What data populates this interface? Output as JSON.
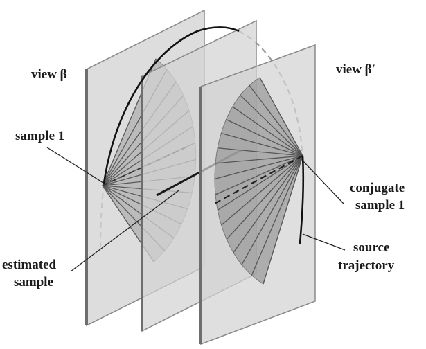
{
  "labels": {
    "view_beta": "view β",
    "view_beta_prime": "view β′",
    "sample_1": "sample 1",
    "estimated_line1": "estimated",
    "estimated_line2": "sample",
    "conjugate_line1": "conjugate",
    "conjugate_line2": "sample 1",
    "source_line1": "source",
    "source_line2": "trajectory"
  },
  "colors": {
    "plane_fill": "#d3d3d3",
    "plane_edge": "#7a7a7a",
    "fan_fill": "#9e9e9e",
    "ray": "#555555",
    "curve": "#111111"
  }
}
